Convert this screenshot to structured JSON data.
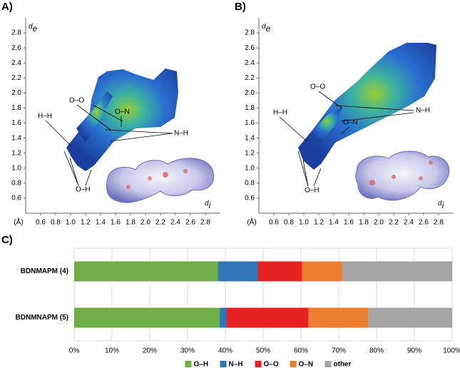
{
  "chart_data": [
    {
      "type": "fingerprint",
      "panel": "A)",
      "y_label": "d",
      "y_label_sub": "e",
      "x_label": "d",
      "x_label_sub": "i",
      "x_unit": "(Å)",
      "xlim": [
        0.4,
        3.0
      ],
      "ylim": [
        0.4,
        3.0
      ],
      "xticks": [
        0.6,
        0.8,
        {
          "value": 1,
          "label": "1.0"
        },
        1.2,
        1.4,
        1.6,
        1.8,
        {
          "value": 2,
          "label": "2.0"
        },
        2.2,
        2.4,
        2.6,
        2.8
      ],
      "yticks": [
        0.6,
        0.8,
        {
          "value": 1,
          "label": "1.0"
        },
        1.2,
        1.4,
        1.6,
        1.8,
        {
          "value": 2,
          "label": "2.0"
        },
        2.2,
        2.4,
        2.6,
        2.8
      ],
      "annotations": [
        "O–O",
        "O–N",
        "H–H",
        "N–H",
        "O–H"
      ]
    },
    {
      "type": "fingerprint",
      "panel": "B)",
      "y_label": "d",
      "y_label_sub": "e",
      "x_label": "d",
      "x_label_sub": "i",
      "x_unit": "(Å)",
      "xlim": [
        0.4,
        3.0
      ],
      "ylim": [
        0.4,
        3.0
      ],
      "xticks": [
        0.6,
        0.8,
        {
          "value": 1,
          "label": "1.0"
        },
        1.2,
        1.4,
        1.6,
        1.8,
        {
          "value": 2,
          "label": "2.0"
        },
        2.2,
        2.4,
        2.6,
        2.8
      ],
      "yticks": [
        0.6,
        0.8,
        {
          "value": 1,
          "label": "1.0"
        },
        1.2,
        1.4,
        1.6,
        1.8,
        {
          "value": 2,
          "label": "2.0"
        },
        2.2,
        2.4,
        2.6,
        2.8
      ],
      "annotations": [
        "O–O",
        "H–H",
        "N–H",
        "O–N",
        "O–H"
      ]
    },
    {
      "type": "stacked-bar",
      "panel": "C)",
      "orientation": "horizontal",
      "categories": [
        "BDNMAPM (4)",
        "BDNMNAPM (5)"
      ],
      "series": [
        {
          "name": "O–H",
          "color": "#70ad47",
          "values": [
            38,
            38.5
          ]
        },
        {
          "name": "N–H",
          "color": "#2e75b6",
          "values": [
            10.5,
            1.7
          ]
        },
        {
          "name": "O–O",
          "color": "#e52322",
          "values": [
            11.8,
            21.8
          ]
        },
        {
          "name": "O–N",
          "color": "#ed7d31",
          "values": [
            10.7,
            15.8
          ]
        },
        {
          "name": "other",
          "color": "#a5a5a5",
          "values": [
            29,
            22.2
          ]
        }
      ],
      "xlim": [
        0,
        100
      ],
      "xticks": [
        {
          "value": 0,
          "label": "0%"
        },
        {
          "value": 10,
          "label": "10%"
        },
        {
          "value": 20,
          "label": "20%"
        },
        {
          "value": 30,
          "label": "30%"
        },
        {
          "value": 40,
          "label": "40%"
        },
        {
          "value": 50,
          "label": "50%"
        },
        {
          "value": 60,
          "label": "60%"
        },
        {
          "value": 70,
          "label": "70%"
        },
        {
          "value": 80,
          "label": "80%"
        },
        {
          "value": 90,
          "label": "90%"
        },
        {
          "value": 100,
          "label": "100%"
        }
      ],
      "grid": true,
      "legend": "bottom"
    }
  ]
}
